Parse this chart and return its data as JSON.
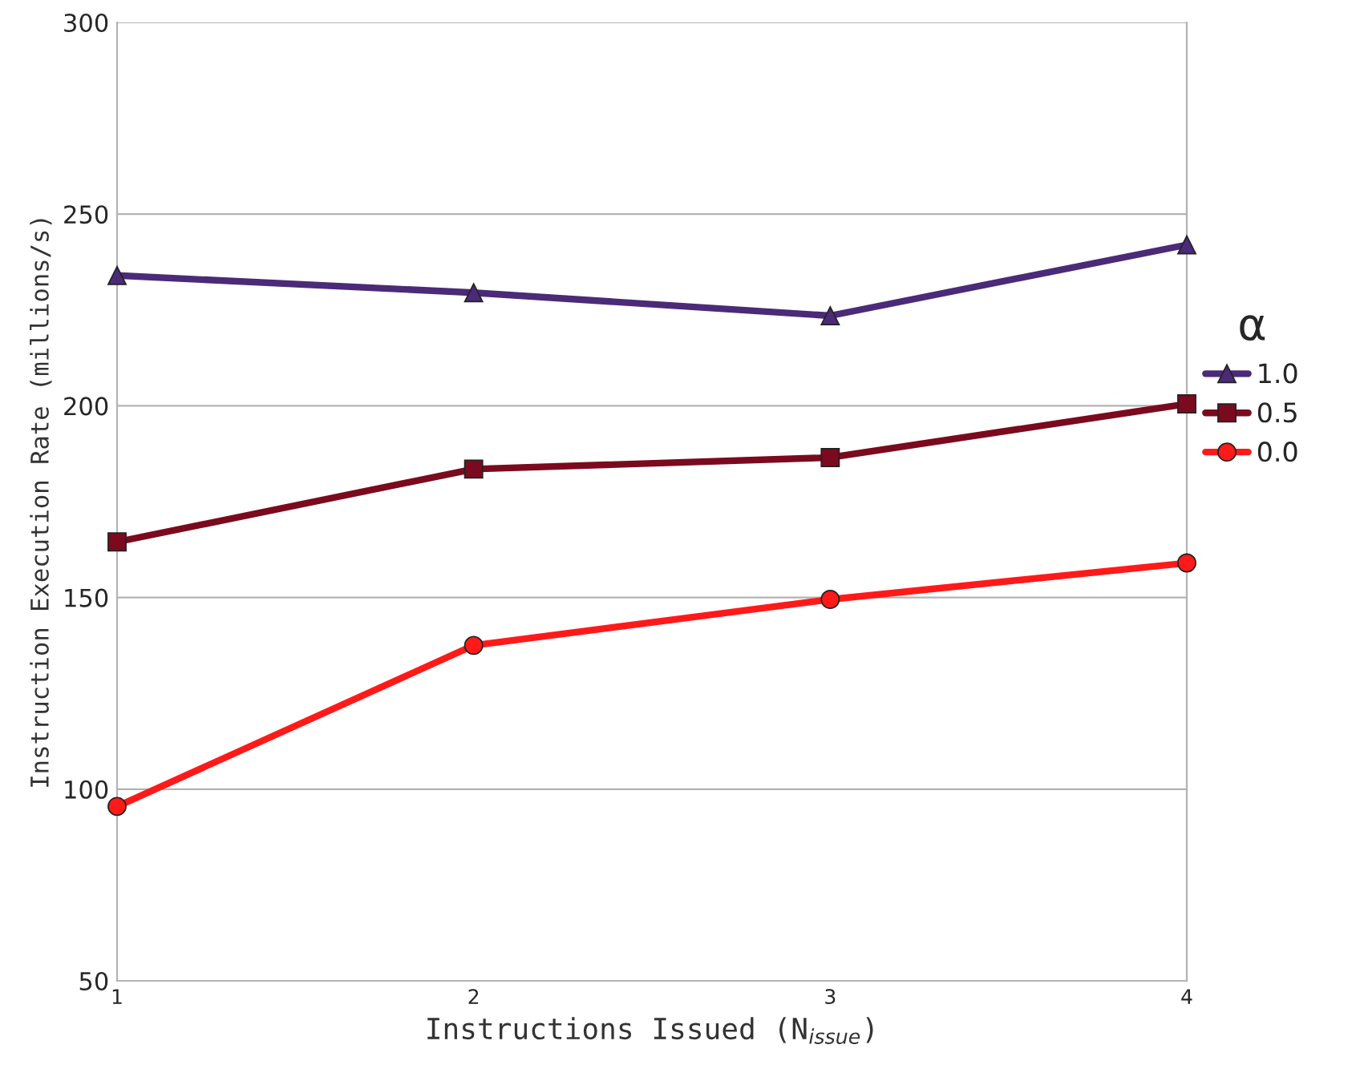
{
  "chart_data": {
    "type": "line",
    "xlabel": "Instructions Issued (N$_{issue}$)",
    "ylabel": "Instruction Execution Rate (millions/s)",
    "legend_title": "α",
    "x": [
      1,
      2,
      3,
      4
    ],
    "xlim": [
      1,
      4
    ],
    "xticks": [
      1,
      2,
      3,
      4
    ],
    "ylim": [
      50,
      300
    ],
    "yticks": [
      50,
      100,
      150,
      200,
      250,
      300
    ],
    "grid": "y",
    "legend": "right",
    "series": [
      {
        "name": "1.0",
        "color": "#4b2a78",
        "marker": "triangle",
        "values": [
          234,
          229.5,
          223.5,
          242
        ]
      },
      {
        "name": "0.5",
        "color": "#7b0a1e",
        "marker": "square",
        "values": [
          164.5,
          183.5,
          186.5,
          200.5
        ]
      },
      {
        "name": "0.0",
        "color": "#ff1a1a",
        "marker": "circle",
        "values": [
          95.5,
          137.5,
          149.5,
          159
        ]
      }
    ]
  }
}
